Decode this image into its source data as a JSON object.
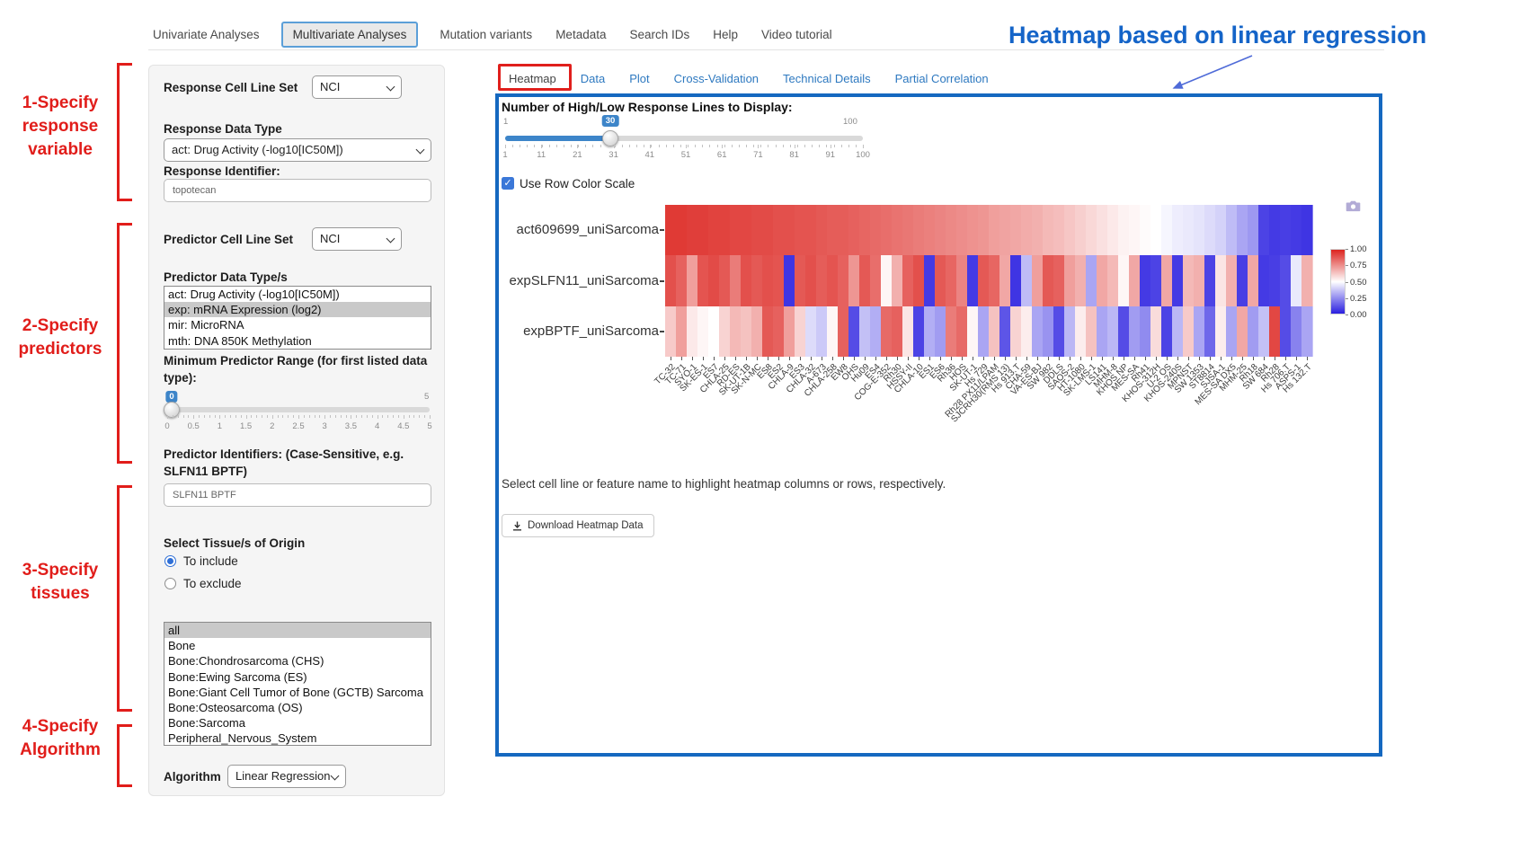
{
  "nav": {
    "items": [
      {
        "label": "Univariate Analyses",
        "active": false
      },
      {
        "label": "Multivariate Analyses",
        "active": true
      },
      {
        "label": "Mutation variants",
        "active": false
      },
      {
        "label": "Metadata",
        "active": false
      },
      {
        "label": "Search IDs",
        "active": false
      },
      {
        "label": "Help",
        "active": false
      },
      {
        "label": "Video tutorial",
        "active": false
      }
    ]
  },
  "annotations": {
    "red_color": "#e11d1a",
    "blue_color": "#1464c8",
    "heatmap_title": "Heatmap based on linear regression",
    "steps": [
      {
        "lines": [
          "1-Specify",
          "response",
          "variable"
        ]
      },
      {
        "lines": [
          "2-Specify",
          "predictors"
        ]
      },
      {
        "lines": [
          "3-Specify",
          "tissues"
        ]
      },
      {
        "lines": [
          "4-Specify",
          "Algorithm"
        ]
      }
    ]
  },
  "sidebar": {
    "response_cell_line_set_label": "Response Cell Line Set",
    "response_cell_line_set_value": "NCI",
    "response_data_type_label": "Response Data Type",
    "response_data_type_value": "act: Drug Activity (-log10[IC50M])",
    "response_identifier_label": "Response Identifier:",
    "response_identifier_value": "topotecan",
    "predictor_cell_line_set_label": "Predictor Cell Line Set",
    "predictor_cell_line_set_value": "NCI",
    "predictor_data_types_label": "Predictor Data Type/s",
    "predictor_data_types": [
      {
        "label": "act: Drug Activity (-log10[IC50M])",
        "selected": false
      },
      {
        "label": "exp: mRNA Expression (log2)",
        "selected": true
      },
      {
        "label": "mir: MicroRNA",
        "selected": false
      },
      {
        "label": "mth: DNA 850K Methylation",
        "selected": false
      }
    ],
    "min_predictor_range_label": "Minimum Predictor Range (for first listed data type):",
    "min_range_slider": {
      "value": "0",
      "max_label": "5",
      "ticks": [
        "0",
        "0.5",
        "1",
        "1.5",
        "2",
        "2.5",
        "3",
        "3.5",
        "4",
        "4.5",
        "5"
      ]
    },
    "predictor_identifiers_label": "Predictor Identifiers: (Case-Sensitive, e.g. SLFN11 BPTF)",
    "predictor_identifiers_value": "SLFN11 BPTF",
    "tissue_label": "Select Tissue/s of Origin",
    "tissue_include_label": "To include",
    "tissue_exclude_label": "To exclude",
    "tissue_options": [
      {
        "label": "all",
        "selected": true
      },
      {
        "label": "Bone",
        "selected": false
      },
      {
        "label": "Bone:Chondrosarcoma (CHS)",
        "selected": false
      },
      {
        "label": "Bone:Ewing Sarcoma (ES)",
        "selected": false
      },
      {
        "label": "Bone:Giant Cell Tumor of Bone (GCTB) Sarcoma",
        "selected": false
      },
      {
        "label": "Bone:Osteosarcoma (OS)",
        "selected": false
      },
      {
        "label": "Bone:Sarcoma",
        "selected": false
      },
      {
        "label": "Peripheral_Nervous_System",
        "selected": false
      }
    ],
    "algorithm_label": "Algorithm",
    "algorithm_value": "Linear Regression"
  },
  "main": {
    "tabs": [
      {
        "label": "Heatmap",
        "active": true
      },
      {
        "label": "Data",
        "active": false
      },
      {
        "label": "Plot",
        "active": false
      },
      {
        "label": "Cross-Validation",
        "active": false
      },
      {
        "label": "Technical Details",
        "active": false
      },
      {
        "label": "Partial Correlation",
        "active": false
      }
    ],
    "slider_title": "Number of High/Low Response Lines to Display:",
    "response_lines_slider": {
      "min_label": "1",
      "max_label": "100",
      "value": "30",
      "ticks": [
        "1",
        "11",
        "21",
        "31",
        "41",
        "51",
        "61",
        "71",
        "81",
        "91",
        "100"
      ]
    },
    "row_color_scale_label": "Use Row Color Scale",
    "note": "Select cell line or feature name to highlight heatmap columns or rows, respectively.",
    "download_button_label": "Download Heatmap Data"
  },
  "chart_data": {
    "type": "heatmap",
    "rows": [
      "act609699_uniSarcoma",
      "expSLFN11_uniSarcoma",
      "expBPTF_uniSarcoma"
    ],
    "columns": [
      "TC-32",
      "TC-71",
      "SYO-1",
      "SK-ES-1",
      "ES7",
      "CHLA-25",
      "RD-ES",
      "SK-UT-1B",
      "SK-N-MC",
      "ES8",
      "ES2",
      "CHLA-9",
      "ES3",
      "CHLA-32",
      "A-673",
      "CHLA-258",
      "EW8",
      "OHS",
      "Hu09",
      "ES4",
      "COG-E-352",
      "Rh30",
      "HSSY-II",
      "CHLA-10",
      "ES1",
      "ES6",
      "Rh36",
      "HOS",
      "SK-UT-1",
      "Hs 729",
      "Rh28 PX11/LPAM",
      "SJCRH30(RMS 13)",
      "Hs 913.T",
      "CHA-59",
      "VA-ES-BJ",
      "SW 982",
      "DDLS",
      "SAOS-2",
      "HT-1080",
      "SK-LMS-1",
      "LS141",
      "MHM-8",
      "KHOS NP",
      "MES-SA",
      "Rh41",
      "KHOS-312H",
      "U-2 OS",
      "KHOS-240S",
      "MPNST",
      "SW 1353",
      "ST8814",
      "SJSA-1",
      "MES-SA DX5",
      "MHM-25",
      "Rh18",
      "SW 684",
      "Rh28",
      "Hs 706.T",
      "ASPS-1",
      "Hs 132.T"
    ],
    "values": [
      [
        0.95,
        0.95,
        0.94,
        0.94,
        0.93,
        0.93,
        0.92,
        0.92,
        0.91,
        0.91,
        0.9,
        0.9,
        0.89,
        0.89,
        0.88,
        0.87,
        0.87,
        0.86,
        0.85,
        0.84,
        0.83,
        0.82,
        0.81,
        0.8,
        0.79,
        0.78,
        0.77,
        0.76,
        0.75,
        0.74,
        0.72,
        0.71,
        0.7,
        0.69,
        0.68,
        0.66,
        0.65,
        0.63,
        0.61,
        0.59,
        0.57,
        0.55,
        0.53,
        0.52,
        0.51,
        0.5,
        0.48,
        0.46,
        0.45,
        0.44,
        0.42,
        0.4,
        0.35,
        0.3,
        0.27,
        0.08,
        0.06,
        0.07,
        0.06,
        0.05
      ],
      [
        0.9,
        0.86,
        0.72,
        0.89,
        0.91,
        0.88,
        0.8,
        0.9,
        0.88,
        0.9,
        0.89,
        0.05,
        0.88,
        0.9,
        0.87,
        0.89,
        0.86,
        0.74,
        0.88,
        0.83,
        0.52,
        0.68,
        0.86,
        0.9,
        0.06,
        0.88,
        0.85,
        0.78,
        0.06,
        0.88,
        0.85,
        0.7,
        0.05,
        0.35,
        0.72,
        0.88,
        0.86,
        0.72,
        0.68,
        0.3,
        0.7,
        0.66,
        0.52,
        0.7,
        0.06,
        0.08,
        0.7,
        0.06,
        0.66,
        0.68,
        0.08,
        0.56,
        0.68,
        0.07,
        0.7,
        0.06,
        0.07,
        0.1,
        0.45,
        0.68
      ],
      [
        0.62,
        0.72,
        0.55,
        0.52,
        0.5,
        0.6,
        0.66,
        0.64,
        0.68,
        0.88,
        0.86,
        0.72,
        0.6,
        0.42,
        0.38,
        0.52,
        0.86,
        0.1,
        0.36,
        0.32,
        0.84,
        0.86,
        0.56,
        0.08,
        0.32,
        0.28,
        0.8,
        0.84,
        0.52,
        0.3,
        0.64,
        0.12,
        0.6,
        0.54,
        0.3,
        0.26,
        0.1,
        0.34,
        0.54,
        0.64,
        0.3,
        0.34,
        0.1,
        0.28,
        0.24,
        0.58,
        0.08,
        0.34,
        0.62,
        0.3,
        0.16,
        0.54,
        0.3,
        0.7,
        0.28,
        0.36,
        0.92,
        0.1,
        0.22,
        0.3
      ]
    ],
    "value_range": [
      0,
      1
    ],
    "colorscale": [
      [
        "0.0",
        "#2a1fe0"
      ],
      [
        "0.5",
        "#ffffff"
      ],
      [
        "1.0",
        "#dc241f"
      ]
    ],
    "colorbar_ticks": [
      "1.00",
      "0.75",
      "0.50",
      "0.25",
      "0.00"
    ],
    "legend_position": "right"
  }
}
